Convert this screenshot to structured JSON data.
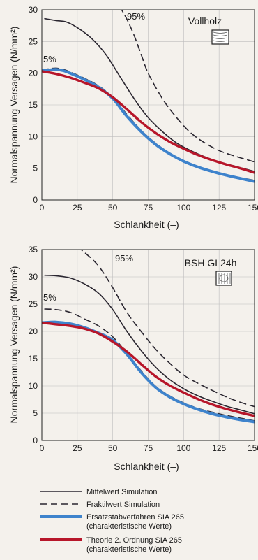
{
  "chart_data": [
    {
      "type": "line",
      "title": "Vollholz",
      "xlabel": "Schlankheit (–)",
      "ylabel": "Normalspannung Versagen (N/mm²)",
      "xlim": [
        0,
        150
      ],
      "ylim": [
        0,
        30
      ],
      "xticks": [
        "0",
        "25",
        "50",
        "75",
        "100",
        "125",
        "150"
      ],
      "yticks": [
        "0",
        "5",
        "10",
        "15",
        "20",
        "25",
        "30"
      ],
      "annotations": [
        "95%",
        "5%"
      ],
      "series": [
        {
          "key": "mittel",
          "x": [
            2,
            10,
            17,
            25,
            35,
            45,
            55,
            65,
            75,
            85,
            95,
            105,
            115,
            125,
            135,
            150
          ],
          "values": [
            28.6,
            28.3,
            28.1,
            27.2,
            25.5,
            23.0,
            19.5,
            16.0,
            13.0,
            10.8,
            9.0,
            7.8,
            6.8,
            6.0,
            5.4,
            4.5
          ]
        },
        {
          "key": "fraktil95",
          "x": [
            55,
            60,
            65,
            70,
            75,
            85,
            95,
            105,
            115,
            125,
            135,
            150
          ],
          "values": [
            30.5,
            28.5,
            26.0,
            23.0,
            20.0,
            16.0,
            13.0,
            10.6,
            9.0,
            7.8,
            7.0,
            6.0
          ]
        },
        {
          "key": "fraktil5",
          "x": [
            0,
            5,
            10,
            15,
            20,
            30,
            40,
            50,
            60,
            70,
            80,
            90,
            100,
            110,
            120,
            130,
            140,
            150
          ],
          "values": [
            20.5,
            20.7,
            20.8,
            20.6,
            20.2,
            19.2,
            18.0,
            16.2,
            13.5,
            11.0,
            9.0,
            7.4,
            6.2,
            5.3,
            4.6,
            4.0,
            3.5,
            3.1
          ]
        },
        {
          "key": "ersatz",
          "x": [
            0,
            5,
            10,
            15,
            20,
            30,
            40,
            50,
            60,
            70,
            80,
            90,
            100,
            110,
            120,
            130,
            140,
            150
          ],
          "values": [
            20.4,
            20.5,
            20.6,
            20.4,
            20.0,
            19.0,
            17.8,
            16.0,
            13.2,
            10.8,
            8.8,
            7.3,
            6.1,
            5.2,
            4.5,
            3.9,
            3.4,
            2.9
          ]
        },
        {
          "key": "theorie",
          "x": [
            0,
            10,
            20,
            30,
            40,
            50,
            60,
            70,
            80,
            90,
            100,
            110,
            120,
            130,
            140,
            150
          ],
          "values": [
            20.3,
            19.9,
            19.3,
            18.5,
            17.6,
            16.2,
            14.3,
            12.3,
            10.6,
            9.2,
            8.1,
            7.1,
            6.3,
            5.6,
            5.0,
            4.3
          ]
        }
      ]
    },
    {
      "type": "line",
      "title": "BSH GL24h",
      "xlabel": "Schlankheit (–)",
      "ylabel": "Normalspannung Versagen (N/mm²)",
      "xlim": [
        0,
        150
      ],
      "ylim": [
        0,
        35
      ],
      "xticks": [
        "0",
        "25",
        "50",
        "75",
        "100",
        "125",
        "150"
      ],
      "yticks": [
        "0",
        "5",
        "10",
        "15",
        "20",
        "25",
        "30",
        "35"
      ],
      "annotations": [
        "95%",
        "5%"
      ],
      "series": [
        {
          "key": "mittel",
          "x": [
            2,
            10,
            20,
            30,
            40,
            50,
            60,
            70,
            80,
            90,
            100,
            110,
            120,
            130,
            140,
            150
          ],
          "values": [
            30.3,
            30.2,
            29.8,
            28.7,
            27.0,
            24.0,
            20.0,
            16.5,
            13.5,
            11.2,
            9.5,
            8.2,
            7.2,
            6.3,
            5.6,
            4.9
          ]
        },
        {
          "key": "fraktil95",
          "x": [
            25,
            30,
            40,
            50,
            60,
            70,
            80,
            90,
            100,
            110,
            120,
            130,
            140,
            150
          ],
          "values": [
            35.5,
            34.5,
            32.0,
            28.0,
            23.5,
            20.0,
            16.8,
            14.2,
            12.0,
            10.5,
            9.2,
            8.0,
            7.0,
            6.2
          ]
        },
        {
          "key": "fraktil5",
          "x": [
            2,
            10,
            20,
            30,
            40,
            50,
            60,
            70,
            80,
            90,
            100,
            110,
            120,
            130,
            140,
            150
          ],
          "values": [
            24.1,
            24.0,
            23.5,
            22.3,
            21.0,
            19.0,
            16.0,
            12.8,
            10.0,
            8.2,
            6.9,
            5.9,
            5.2,
            4.6,
            4.1,
            3.6
          ]
        },
        {
          "key": "ersatz",
          "x": [
            0,
            10,
            20,
            30,
            40,
            50,
            60,
            70,
            80,
            90,
            100,
            110,
            120,
            130,
            140,
            150
          ],
          "values": [
            21.6,
            21.7,
            21.4,
            20.7,
            19.7,
            18.4,
            15.8,
            12.5,
            9.8,
            8.0,
            6.7,
            5.7,
            4.9,
            4.3,
            3.8,
            3.4
          ]
        },
        {
          "key": "theorie",
          "x": [
            0,
            10,
            20,
            30,
            40,
            50,
            60,
            70,
            80,
            90,
            100,
            110,
            120,
            130,
            140,
            150
          ],
          "values": [
            21.6,
            21.3,
            21.0,
            20.5,
            19.6,
            18.1,
            16.3,
            14.0,
            11.8,
            10.1,
            8.8,
            7.6,
            6.6,
            5.8,
            5.1,
            4.5
          ]
        }
      ]
    }
  ],
  "legend": {
    "items": [
      {
        "key": "mittel",
        "line1": "Mittelwert Simulation",
        "line2": ""
      },
      {
        "key": "fraktil",
        "line1": "Fraktilwert Simulation",
        "line2": ""
      },
      {
        "key": "ersatz",
        "line1": "Ersatzstabverfahren SIA 265",
        "line2": "(charakteristische Werte)"
      },
      {
        "key": "theorie",
        "line1": "Theorie 2. Ordnung SIA 265",
        "line2": "(charakteristische Werte)"
      }
    ]
  },
  "colors": {
    "mittel": "#2a2630",
    "fraktil": "#2a2630",
    "ersatz": "#3e83cc",
    "theorie": "#b7162a",
    "grid": "#bdbdbd"
  },
  "icons": [
    "vollholz-wood-icon",
    "bsh-glulam-icon"
  ]
}
